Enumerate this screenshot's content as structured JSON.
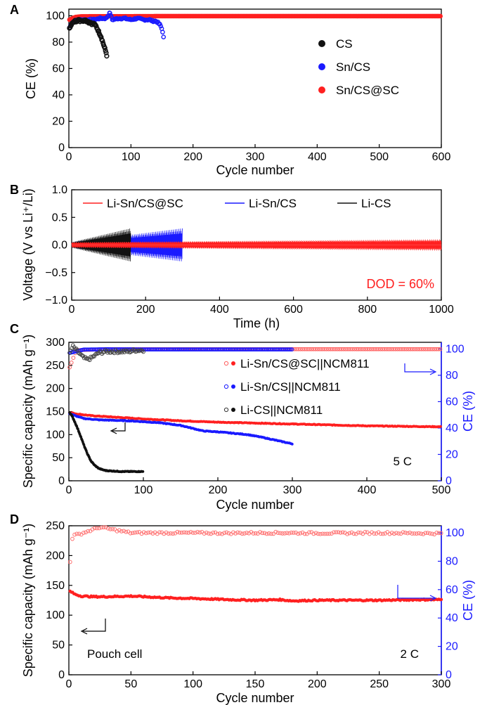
{
  "chart_data": [
    {
      "panel_label": "A",
      "type": "scatter",
      "xlabel": "Cycle number",
      "ylabel": "CE (%)",
      "xlim": [
        0,
        600
      ],
      "ylim": [
        0,
        105
      ],
      "xticks": [
        "0",
        "100",
        "200",
        "300",
        "400",
        "500",
        "600"
      ],
      "yticks": [
        "0",
        "20",
        "40",
        "60",
        "80",
        "100"
      ],
      "legend_position": "right-middle",
      "series": [
        {
          "name": "CS",
          "color": "#111111",
          "x": [
            1,
            3,
            5,
            8,
            10,
            12,
            15,
            18,
            20,
            22,
            25,
            28,
            30,
            32,
            35,
            37,
            40,
            42,
            44,
            46,
            48,
            50,
            52,
            54,
            56,
            58,
            60,
            61
          ],
          "y": [
            90,
            93,
            94,
            95,
            96,
            96,
            97,
            96,
            97,
            96,
            97,
            96,
            96,
            95,
            95,
            94,
            94,
            93,
            92,
            90,
            88,
            86,
            84,
            81,
            78,
            75,
            72,
            70
          ]
        },
        {
          "name": "Sn/CS",
          "color": "#1a1aff",
          "x": [
            1,
            5,
            10,
            15,
            20,
            30,
            40,
            50,
            60,
            66,
            70,
            80,
            90,
            100,
            110,
            120,
            130,
            135,
            140,
            143,
            145,
            147,
            149,
            151,
            152,
            153
          ],
          "y": [
            91,
            95,
            96,
            97,
            97,
            97,
            97,
            98,
            98,
            102,
            97,
            98,
            98,
            97,
            98,
            97,
            97,
            96,
            96,
            95,
            94,
            93,
            91,
            88,
            85,
            82
          ]
        },
        {
          "name": "Sn/CS@SC",
          "color": "#ff2020",
          "x": [
            1,
            10,
            20,
            50,
            100,
            150,
            200,
            250,
            300,
            350,
            400,
            450,
            500,
            550,
            600
          ],
          "y": [
            97,
            99,
            99.5,
            99.6,
            99.6,
            99.7,
            99.7,
            99.7,
            99.7,
            99.7,
            99.7,
            99.7,
            99.7,
            99.7,
            99.7
          ]
        }
      ]
    },
    {
      "panel_label": "B",
      "type": "line",
      "xlabel": "Time (h)",
      "ylabel": "Voltage (V vs Li⁺/Li)",
      "xlim": [
        0,
        1000
      ],
      "ylim": [
        -1.0,
        1.0
      ],
      "xticks": [
        "0",
        "200",
        "400",
        "600",
        "800",
        "1000"
      ],
      "yticks": [
        "−1.0",
        "−0.5",
        "0.0",
        "0.5",
        "1.0"
      ],
      "legend_position": "top",
      "annotation": "DOD = 60%",
      "series": [
        {
          "name": "Li-Sn/CS@SC",
          "color": "#ff2020",
          "x_range": [
            0,
            1000
          ],
          "amplitude_start": 0.05,
          "amplitude_end": 0.1
        },
        {
          "name": "Li-Sn/CS",
          "color": "#1a1aff",
          "x_range": [
            0,
            300
          ],
          "amplitude_start": 0.05,
          "amplitude_end": 0.3
        },
        {
          "name": "Li-CS",
          "color": "#111111",
          "x_range": [
            0,
            160
          ],
          "amplitude_start": 0.05,
          "amplitude_end": 0.3
        }
      ]
    },
    {
      "panel_label": "C",
      "type": "scatter",
      "xlabel": "Cycle number",
      "ylabel": "Specific capacity (mAh g⁻¹)",
      "y2label": "CE (%)",
      "xlim": [
        0,
        500
      ],
      "ylim": [
        0,
        300
      ],
      "y2lim": [
        0,
        105
      ],
      "xticks": [
        "0",
        "100",
        "200",
        "300",
        "400",
        "500"
      ],
      "yticks": [
        "0",
        "50",
        "100",
        "150",
        "200",
        "250",
        "300"
      ],
      "y2ticks": [
        "0",
        "20",
        "40",
        "60",
        "80",
        "100"
      ],
      "legend_position": "upper-middle",
      "annotation": "5 C",
      "series": [
        {
          "name": "Li-Sn/CS@SC||NCM811",
          "color": "#ff2020",
          "capacity": {
            "x": [
              1,
              10,
              30,
              50,
              80,
              100,
              150,
              200,
              250,
              300,
              350,
              400,
              450,
              500
            ],
            "y": [
              148,
              145,
              141,
              139,
              136,
              134,
              130,
              127,
              125,
              123,
              121,
              119,
              118,
              117
            ]
          },
          "ce": {
            "x": [
              1,
              10,
              50,
              100,
              200,
              300,
              400,
              500
            ],
            "y": [
              86,
              99,
              99.8,
              99.8,
              99.8,
              99.8,
              99.8,
              99.8
            ]
          }
        },
        {
          "name": "Li-Sn/CS||NCM811",
          "color": "#1a1aff",
          "capacity": {
            "x": [
              1,
              10,
              20,
              40,
              60,
              80,
              100,
              120,
              150,
              170,
              180,
              200,
              220,
              240,
              260,
              280,
              300
            ],
            "y": [
              146,
              140,
              135,
              132,
              131,
              130,
              128,
              126,
              120,
              112,
              108,
              106,
              103,
              100,
              94,
              87,
              80
            ]
          },
          "ce": {
            "x": [
              1,
              20,
              50,
              100,
              150,
              200,
              250,
              300
            ],
            "y": [
              97,
              99.5,
              99.7,
              99.6,
              99.6,
              99.6,
              99.6,
              99.6
            ]
          }
        },
        {
          "name": "Li-CS||NCM811",
          "color": "#111111",
          "capacity": {
            "x": [
              1,
              5,
              10,
              15,
              20,
              25,
              30,
              35,
              40,
              45,
              50,
              60,
              70,
              80,
              90,
              100
            ],
            "y": [
              148,
              138,
              120,
              100,
              78,
              58,
              42,
              33,
              27,
              24,
              22,
              21,
              20,
              20,
              20,
              20
            ]
          },
          "ce": {
            "x": [
              1,
              5,
              10,
              15,
              20,
              25,
              30,
              35,
              40,
              50,
              60,
              70,
              80,
              90,
              100
            ],
            "y": [
              96,
              102,
              99,
              96,
              93,
              92,
              93,
              95,
              97,
              98,
              98,
              98,
              98,
              99,
              99
            ]
          }
        }
      ]
    },
    {
      "panel_label": "D",
      "type": "scatter",
      "xlabel": "Cycle number",
      "ylabel": "Specific capacity (mAh g⁻¹)",
      "y2label": "CE (%)",
      "xlim": [
        0,
        300
      ],
      "ylim": [
        0,
        250
      ],
      "y2lim": [
        0,
        105
      ],
      "xticks": [
        "0",
        "50",
        "100",
        "150",
        "200",
        "250",
        "300"
      ],
      "yticks": [
        "0",
        "50",
        "100",
        "150",
        "200",
        "250"
      ],
      "y2ticks": [
        "0",
        "20",
        "40",
        "60",
        "80",
        "100"
      ],
      "annotation_left": "Pouch cell",
      "annotation": "2 C",
      "series": [
        {
          "name": "Pouch cell",
          "color": "#ff2020",
          "capacity": {
            "x": [
              1,
              5,
              10,
              20,
              30,
              50,
              60,
              80,
              100,
              130,
              150,
              170,
              180,
              200,
              220,
              250,
              280,
              300
            ],
            "y": [
              140,
              135,
              132,
              131,
              131,
              132,
              131,
              129,
              128,
              126,
              125,
              126,
              124,
              125,
              125,
              125,
              126,
              126
            ]
          },
          "ce": {
            "x": [
              1,
              3,
              10,
              25,
              50,
              75,
              100,
              125,
              150,
              175,
              200,
              225,
              250,
              275,
              300
            ],
            "y": [
              80,
              98,
              99.5,
              104,
              100,
              100,
              100,
              99.8,
              100,
              100,
              99.8,
              99.8,
              100,
              99.8,
              99.6
            ]
          }
        }
      ]
    }
  ]
}
